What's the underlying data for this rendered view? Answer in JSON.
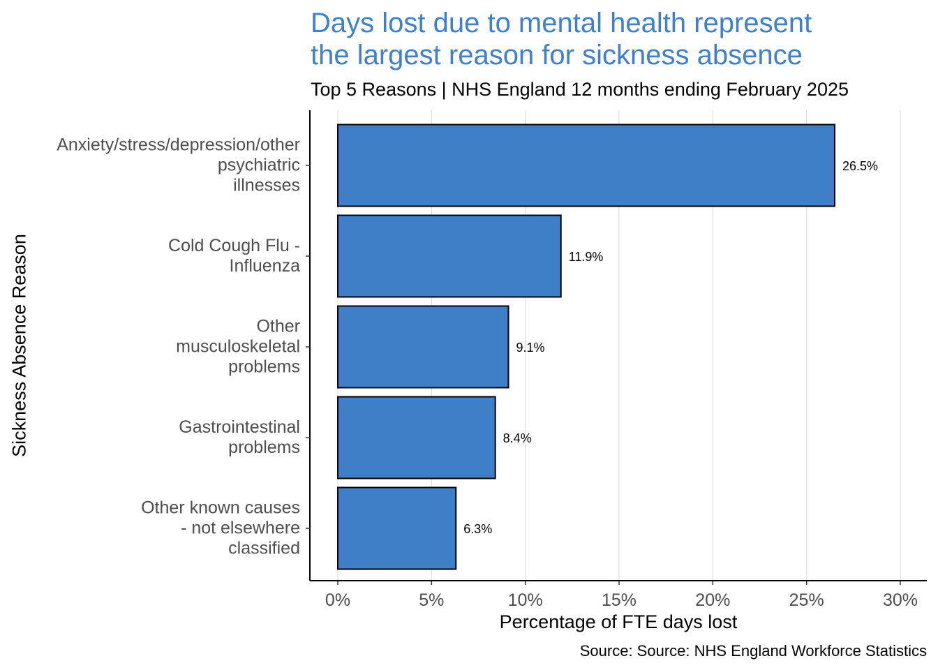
{
  "chart_data": {
    "type": "bar",
    "orientation": "horizontal",
    "title": "Days lost due to mental health represent the largest reason for sickness absence",
    "title_lines": [
      "Days lost due to mental health represent",
      "the largest reason for sickness absence"
    ],
    "subtitle": "Top 5 Reasons | NHS England 12 months ending February 2025",
    "xlabel": "Percentage of FTE days lost",
    "ylabel": "Sickness Absence Reason",
    "caption": "Source: Source: NHS England Workforce Statistics",
    "categories": [
      "Anxiety/stress/depression/other\npsychiatric\nillnesses",
      "Cold Cough Flu -\nInfluenza",
      "Other\nmusculoskeletal\nproblems",
      "Gastrointestinal\nproblems",
      "Other known causes\n- not elsewhere\nclassified"
    ],
    "values": [
      26.5,
      11.9,
      9.1,
      8.4,
      6.3
    ],
    "data_labels": [
      "26.5%",
      "11.9%",
      "9.1%",
      "8.4%",
      "6.3%"
    ],
    "xlim": [
      0,
      30
    ],
    "xticks": [
      0,
      5,
      10,
      15,
      20,
      25,
      30
    ],
    "xtick_labels": [
      "0%",
      "5%",
      "10%",
      "15%",
      "20%",
      "25%",
      "30%"
    ],
    "grid": "vertical major",
    "colors": {
      "bar": "#3f7fc8",
      "title": "#3f7fcc"
    }
  }
}
